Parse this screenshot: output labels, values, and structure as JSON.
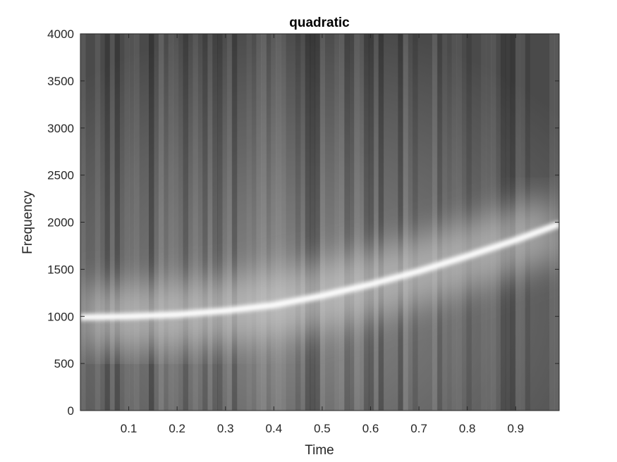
{
  "chart_data": {
    "type": "heatmap",
    "title": "quadratic",
    "xlabel": "Time",
    "ylabel": "Frequency",
    "xlim": [
      0,
      0.99
    ],
    "ylim": [
      0,
      4000
    ],
    "xticks": [
      0.1,
      0.2,
      0.3,
      0.4,
      0.5,
      0.6,
      0.7,
      0.8,
      0.9
    ],
    "xtick_labels": [
      "0.1",
      "0.2",
      "0.3",
      "0.4",
      "0.5",
      "0.6",
      "0.7",
      "0.8",
      "0.9"
    ],
    "yticks": [
      0,
      500,
      1000,
      1500,
      2000,
      2500,
      3000,
      3500,
      4000
    ],
    "ytick_labels": [
      "0",
      "500",
      "1000",
      "1500",
      "2000",
      "2500",
      "3000",
      "3500",
      "4000"
    ],
    "colormap": "gray",
    "ridge": {
      "description": "quadratic chirp",
      "time": [
        0.0,
        0.1,
        0.2,
        0.3,
        0.4,
        0.5,
        0.6,
        0.7,
        0.8,
        0.9,
        0.99
      ],
      "frequency": [
        990,
        1000,
        1020,
        1060,
        1120,
        1220,
        1340,
        1480,
        1640,
        1810,
        1980
      ]
    },
    "grid": false
  },
  "colors": {
    "background": "#ffffff",
    "axes_box": "#262626",
    "ridge": "#ffffff"
  }
}
